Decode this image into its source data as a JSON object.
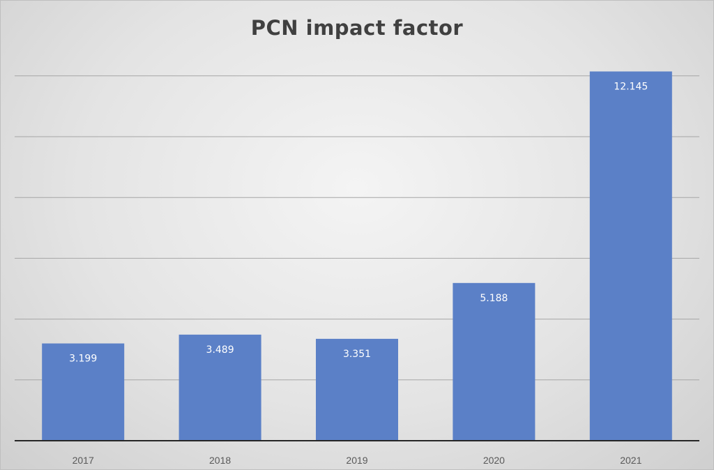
{
  "chart_data": {
    "type": "bar",
    "title": "PCN impact factor",
    "xlabel": "",
    "ylabel": "",
    "categories": [
      "2017",
      "2018",
      "2019",
      "2020",
      "2021"
    ],
    "series": [
      {
        "values": [
          3.199,
          3.489,
          3.351,
          5.188,
          12.145
        ]
      }
    ],
    "ylim": [
      0,
      12
    ],
    "ytick_step": 2,
    "gridlines": true,
    "legend": "none",
    "bar_color": "#5b80c7",
    "data_labels": [
      "3.199",
      "3.489",
      "3.351",
      "5.188",
      "12.145"
    ]
  }
}
